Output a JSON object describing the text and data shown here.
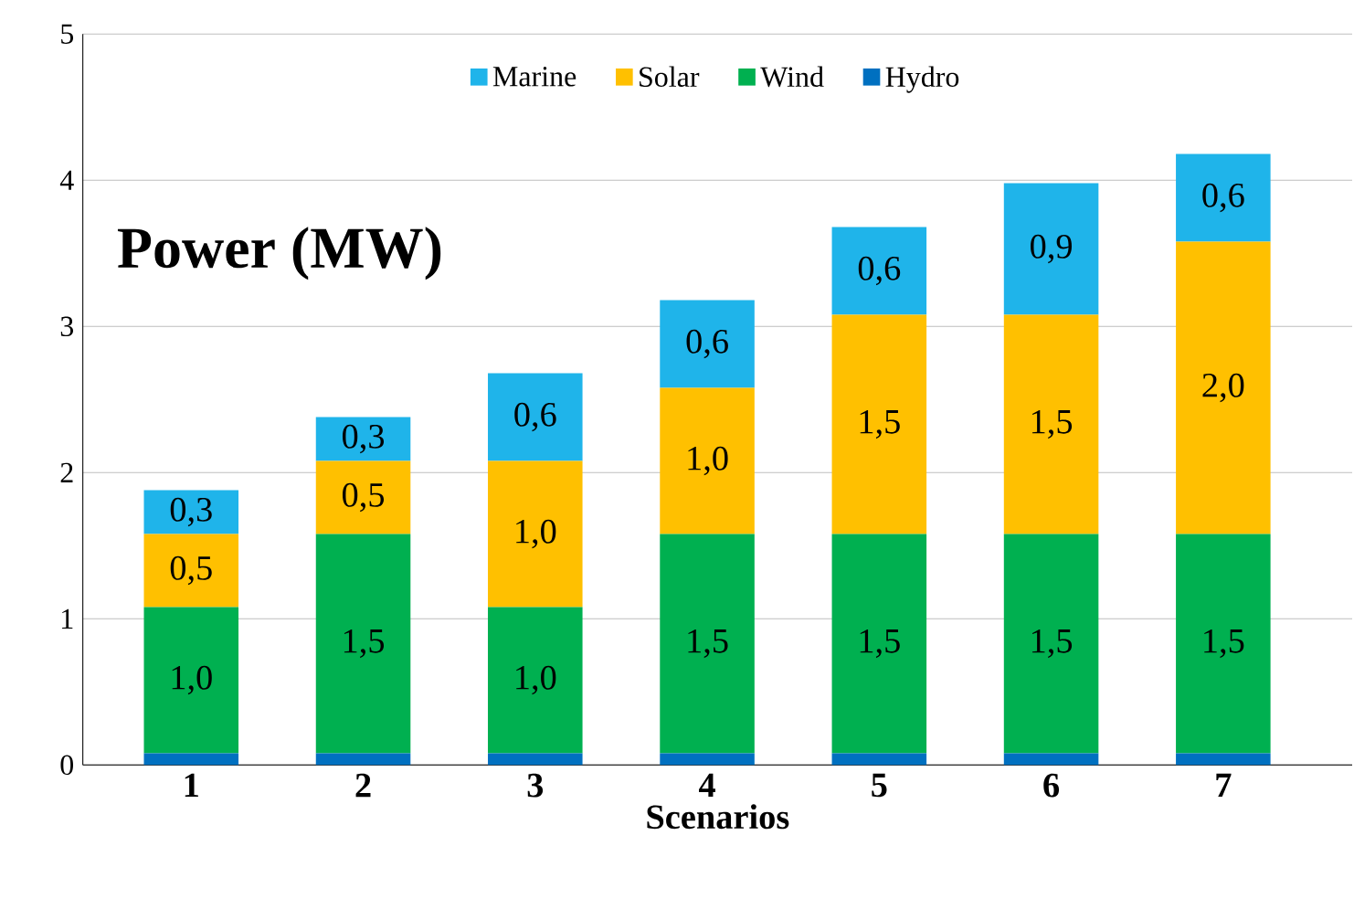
{
  "chart_data": {
    "type": "bar",
    "stacked": true,
    "title": "Power (MW)",
    "xlabel": "Scenarios",
    "categories": [
      "1",
      "2",
      "3",
      "4",
      "5",
      "6",
      "7"
    ],
    "series": [
      {
        "name": "Hydro",
        "color": "#0070c0",
        "values": [
          0.08,
          0.08,
          0.08,
          0.08,
          0.08,
          0.08,
          0.08
        ]
      },
      {
        "name": "Wind",
        "color": "#00b050",
        "values": [
          1.0,
          1.5,
          1.0,
          1.5,
          1.5,
          1.5,
          1.5
        ],
        "value_labels": [
          "1,0",
          "1,5",
          "1,0",
          "1,5",
          "1,5",
          "1,5",
          "1,5"
        ]
      },
      {
        "name": "Solar",
        "color": "#ffc000",
        "values": [
          0.5,
          0.5,
          1.0,
          1.0,
          1.5,
          1.5,
          2.0
        ],
        "value_labels": [
          "0,5",
          "0,5",
          "1,0",
          "1,0",
          "1,5",
          "1,5",
          "2,0"
        ]
      },
      {
        "name": "Marine",
        "color": "#1fb4ea",
        "values": [
          0.3,
          0.3,
          0.6,
          0.6,
          0.6,
          0.9,
          0.6
        ],
        "value_labels": [
          "0,3",
          "0,3",
          "0,6",
          "0,6",
          "0,6",
          "0,9",
          "0,6"
        ]
      }
    ],
    "ylim": [
      0,
      5
    ],
    "yticks": [
      0,
      1,
      2,
      3,
      4,
      5
    ],
    "grid": "y",
    "legend": "top"
  }
}
